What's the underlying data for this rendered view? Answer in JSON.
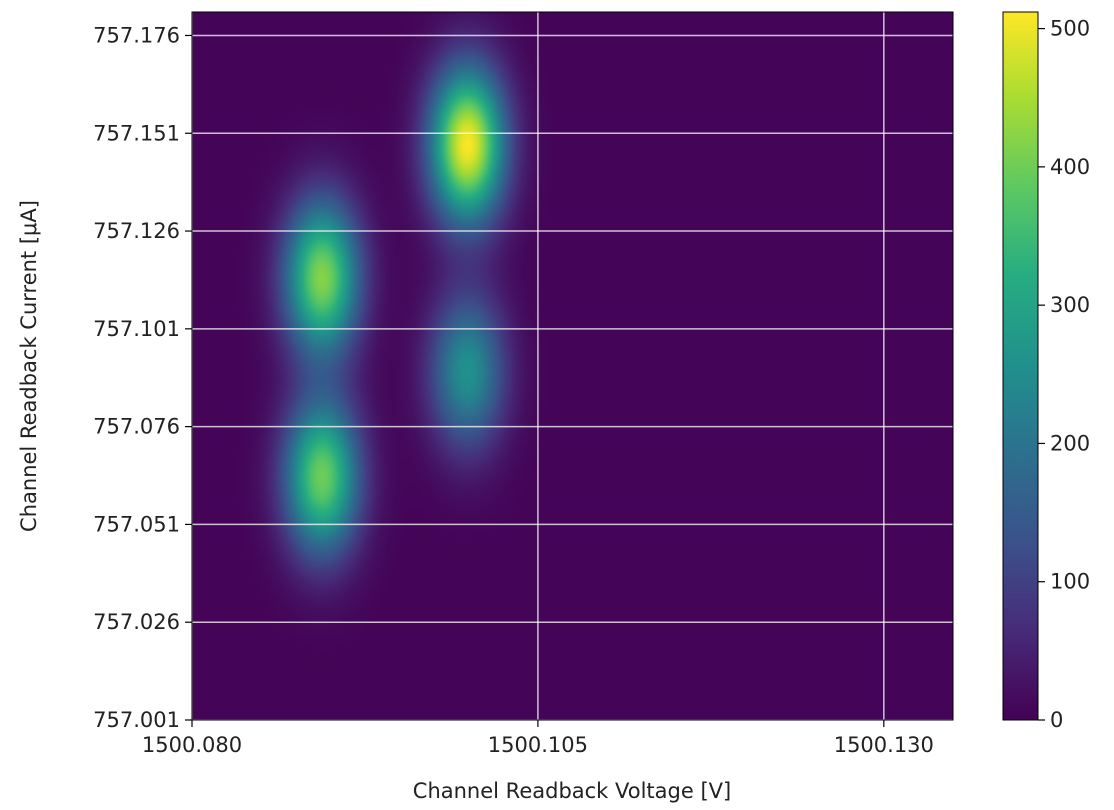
{
  "chart_data": {
    "type": "heatmap",
    "title": "",
    "xlabel": "Channel Readback Voltage [V]",
    "ylabel": "Channel Readback Current [μA]",
    "xlim": [
      1500.08,
      1500.135
    ],
    "ylim": [
      757.001,
      757.182
    ],
    "x_ticks": [
      1500.08,
      1500.105,
      1500.13
    ],
    "x_tick_labels": [
      "1500.080",
      "1500.105",
      "1500.130"
    ],
    "y_ticks": [
      757.001,
      757.026,
      757.051,
      757.076,
      757.101,
      757.126,
      757.151,
      757.176
    ],
    "y_tick_labels": [
      "757.001",
      "757.026",
      "757.051",
      "757.076",
      "757.101",
      "757.126",
      "757.151",
      "757.176"
    ],
    "grid": true,
    "colormap": "viridis",
    "colorbar": {
      "range": [
        0,
        512
      ],
      "ticks": [
        0,
        100,
        200,
        300,
        400,
        500
      ],
      "tick_labels": [
        "0",
        "100",
        "200",
        "300",
        "400",
        "500"
      ]
    },
    "peaks": [
      {
        "x": 1500.0894,
        "y": 757.114,
        "value": 420
      },
      {
        "x": 1500.0894,
        "y": 757.063,
        "value": 400
      },
      {
        "x": 1500.0999,
        "y": 757.148,
        "value": 510
      },
      {
        "x": 1500.0999,
        "y": 757.09,
        "value": 260
      }
    ],
    "background_value": 5
  }
}
